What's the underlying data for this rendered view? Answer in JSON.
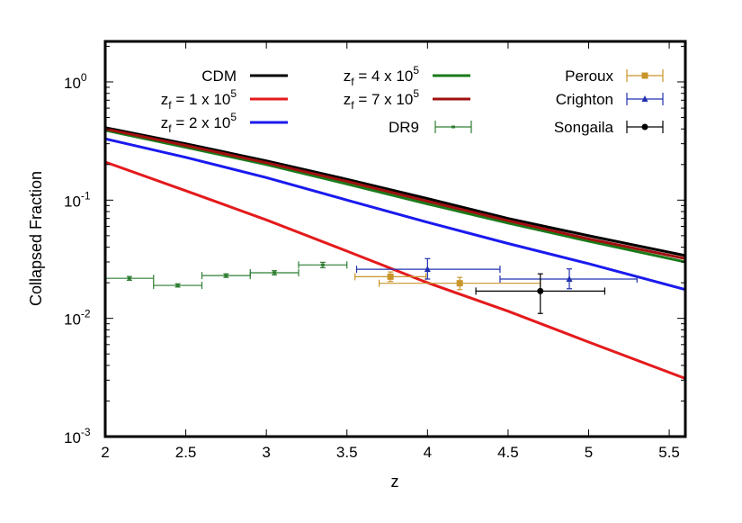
{
  "chart_data": {
    "type": "line",
    "title": "",
    "xlabel": "z",
    "ylabel": "Collapsed Fraction",
    "xlim": [
      2,
      5.6
    ],
    "ylim": [
      0.001,
      2.2
    ],
    "yscale": "log",
    "grid": false,
    "legend_placement": "top",
    "x_ticks": [
      2,
      2.5,
      3,
      3.5,
      4,
      4.5,
      5,
      5.5
    ],
    "x_tick_labels": [
      "2",
      "2.5",
      "3",
      "3.5",
      "4",
      "4.5",
      "5",
      "5.5"
    ],
    "y_ticks": [
      0.001,
      0.01,
      0.1,
      1
    ],
    "y_tick_labels": [
      {
        "base": "10",
        "exp": "-3"
      },
      {
        "base": "10",
        "exp": "-2"
      },
      {
        "base": "10",
        "exp": "-1"
      },
      {
        "base": "10",
        "exp": "0"
      }
    ],
    "series": [
      {
        "name": "CDM",
        "label_main": "CDM",
        "label_sub": "",
        "label_rest": "",
        "label_sup": "",
        "color": "#000000",
        "x": [
          2,
          2.5,
          3,
          3.5,
          4,
          4.5,
          5,
          5.6
        ],
        "y": [
          0.41,
          0.3,
          0.215,
          0.15,
          0.103,
          0.07,
          0.05,
          0.034
        ]
      },
      {
        "name": "zf = 1 x 10^5",
        "label_main": "z",
        "label_sub": "f",
        "label_rest": " = 1 x 10",
        "label_sup": "5",
        "color": "#e41a1c",
        "x": [
          2,
          2.5,
          3,
          3.5,
          4,
          4.5,
          5,
          5.6
        ],
        "y": [
          0.21,
          0.12,
          0.068,
          0.037,
          0.02,
          0.0115,
          0.0063,
          0.0031
        ]
      },
      {
        "name": "zf = 2 x 10^5",
        "label_main": "z",
        "label_sub": "f",
        "label_rest": " = 2 x 10",
        "label_sup": "5",
        "color": "#1a1aee",
        "x": [
          2,
          2.5,
          3,
          3.5,
          4,
          4.5,
          5,
          5.6
        ],
        "y": [
          0.33,
          0.23,
          0.155,
          0.1,
          0.065,
          0.043,
          0.029,
          0.0175
        ]
      },
      {
        "name": "zf = 4 x 10^5",
        "label_main": "z",
        "label_sub": "f",
        "label_rest": " = 4 x 10",
        "label_sup": "5",
        "color": "#1a7a1a",
        "x": [
          2,
          2.5,
          3,
          3.5,
          4,
          4.5,
          5,
          5.6
        ],
        "y": [
          0.39,
          0.28,
          0.2,
          0.137,
          0.093,
          0.064,
          0.045,
          0.03
        ]
      },
      {
        "name": "zf = 7 x 10^5",
        "label_main": "z",
        "label_sub": "f",
        "label_rest": " = 7 x 10",
        "label_sup": "5",
        "color": "#a01010",
        "x": [
          2,
          2.5,
          3,
          3.5,
          4,
          4.5,
          5,
          5.6
        ],
        "y": [
          0.4,
          0.29,
          0.207,
          0.144,
          0.098,
          0.067,
          0.047,
          0.032
        ]
      }
    ],
    "datasets": [
      {
        "name": "DR9",
        "color": "#2e7d32",
        "marker": "dot",
        "points": [
          {
            "x": 2.15,
            "xerr": [
              2.0,
              2.3
            ],
            "y": 0.0218,
            "yerr": [
              0.021,
              0.0226
            ]
          },
          {
            "x": 2.45,
            "xerr": [
              2.3,
              2.6
            ],
            "y": 0.019,
            "yerr": [
              0.0184,
              0.0196
            ]
          },
          {
            "x": 2.75,
            "xerr": [
              2.6,
              2.9
            ],
            "y": 0.023,
            "yerr": [
              0.0222,
              0.0238
            ]
          },
          {
            "x": 3.05,
            "xerr": [
              2.9,
              3.2
            ],
            "y": 0.0243,
            "yerr": [
              0.0233,
              0.0253
            ]
          },
          {
            "x": 3.35,
            "xerr": [
              3.2,
              3.5
            ],
            "y": 0.0283,
            "yerr": [
              0.0268,
              0.0298
            ]
          }
        ]
      },
      {
        "name": "Peroux",
        "color": "#c9952b",
        "marker": "square",
        "points": [
          {
            "x": 3.77,
            "xerr": [
              3.55,
              3.99
            ],
            "y": 0.0225,
            "yerr": [
              0.0205,
              0.0247
            ]
          },
          {
            "x": 4.2,
            "xerr": [
              3.7,
              4.7
            ],
            "y": 0.0198,
            "yerr": [
              0.0175,
              0.0222
            ]
          }
        ]
      },
      {
        "name": "Crighton",
        "color": "#2030b0",
        "marker": "triangle",
        "points": [
          {
            "x": 4.0,
            "xerr": [
              3.56,
              4.45
            ],
            "y": 0.026,
            "yerr": [
              0.0215,
              0.032
            ]
          },
          {
            "x": 4.88,
            "xerr": [
              4.45,
              5.3
            ],
            "y": 0.0215,
            "yerr": [
              0.0178,
              0.0262
            ]
          }
        ]
      },
      {
        "name": "Songaila",
        "color": "#000000",
        "marker": "circle",
        "points": [
          {
            "x": 4.7,
            "xerr": [
              4.3,
              5.1
            ],
            "y": 0.017,
            "yerr": [
              0.011,
              0.0238
            ]
          }
        ]
      }
    ]
  }
}
